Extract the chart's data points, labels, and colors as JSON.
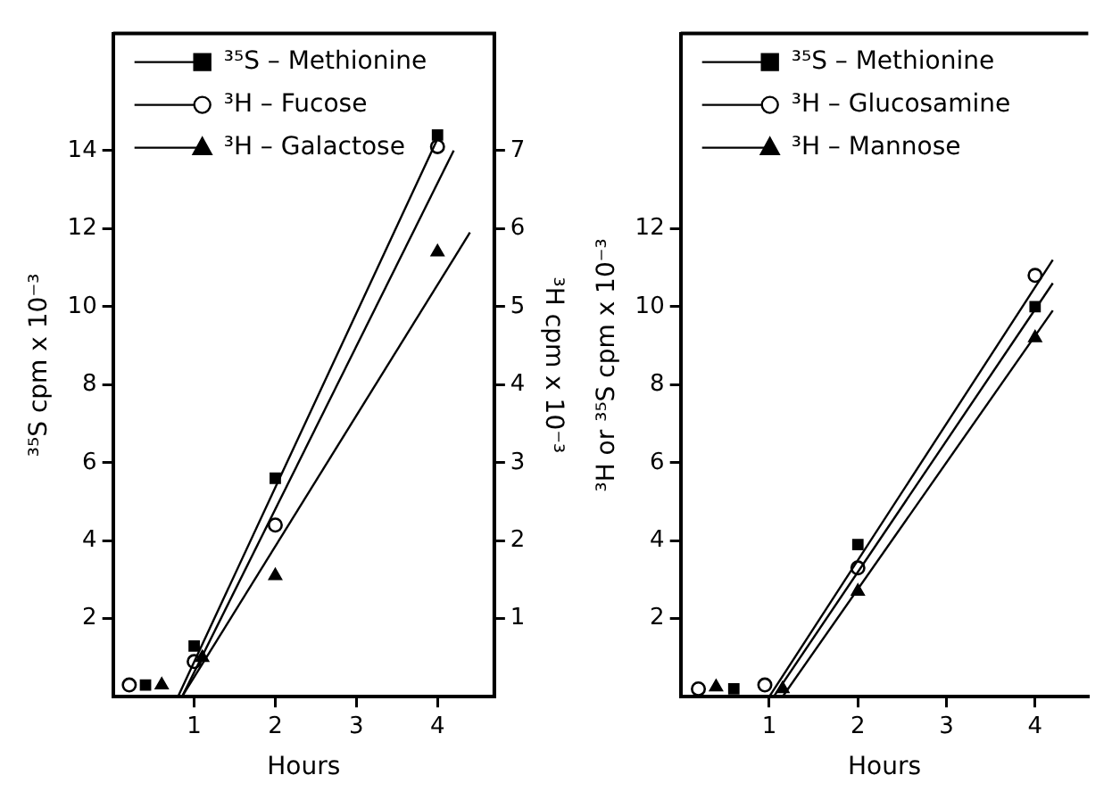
{
  "chart_data": [
    {
      "type": "scatter",
      "xlabel": "Hours",
      "ylabel": "³⁵S cpm x 10⁻³",
      "y2label": "³H cpm x 10⁻³",
      "xlim": [
        0,
        4.7
      ],
      "xticks": [
        1,
        2,
        3,
        4
      ],
      "ylim": [
        0,
        17
      ],
      "yticks": [
        2,
        4,
        6,
        8,
        10,
        12,
        14
      ],
      "y2lim": [
        0,
        8.5
      ],
      "y2ticks": [
        1,
        2,
        3,
        4,
        5,
        6,
        7
      ],
      "grid": false,
      "legend": "top left",
      "series": [
        {
          "name": "³⁵S – Methionine",
          "type": "scatter",
          "marker": "square",
          "color": "#000000",
          "x": [
            0.4,
            1,
            2,
            4
          ],
          "values": [
            0.3,
            1.3,
            5.6,
            14.4
          ]
        },
        {
          "name": "³H – Fucose",
          "type": "scatter",
          "marker": "circle",
          "color": "#000000",
          "axis": "y2",
          "x": [
            0.2,
            1,
            2,
            4
          ],
          "values": [
            0.15,
            0.45,
            2.2,
            7.05
          ]
        },
        {
          "name": "³H – Galactose",
          "type": "scatter",
          "marker": "triangle",
          "color": "#000000",
          "axis": "y2",
          "x": [
            0.6,
            1.1,
            2,
            4
          ],
          "values": [
            0.15,
            0.5,
            1.55,
            5.7
          ]
        },
        {
          "type": "line",
          "marker": "none",
          "color": "#000000",
          "x": [
            0.8,
            4
          ],
          "values": [
            0,
            14.3
          ]
        },
        {
          "type": "line",
          "marker": "none",
          "color": "#000000",
          "axis": "y2",
          "x": [
            0.85,
            4.2
          ],
          "values": [
            0,
            7.0
          ]
        },
        {
          "type": "line",
          "marker": "none",
          "color": "#000000",
          "axis": "y2",
          "x": [
            0.85,
            4.4
          ],
          "values": [
            0,
            5.95
          ]
        }
      ]
    },
    {
      "type": "scatter",
      "xlabel": "Hours",
      "ylabel": "³H or ³⁵S cpm x 10⁻³",
      "xlim": [
        0,
        4.6
      ],
      "xticks": [
        1,
        2,
        3,
        4
      ],
      "ylim": [
        0,
        17
      ],
      "yticks": [
        2,
        4,
        6,
        8,
        10,
        12
      ],
      "grid": false,
      "legend": "top left",
      "series": [
        {
          "name": "³⁵S – Methionine",
          "type": "scatter",
          "marker": "square",
          "color": "#000000",
          "x": [
            0.6,
            1.05,
            2,
            4
          ],
          "values": [
            0.2,
            null,
            3.9,
            10.0
          ]
        },
        {
          "name": "³H – Glucosamine",
          "type": "scatter",
          "marker": "circle",
          "color": "#000000",
          "x": [
            0.2,
            0.95,
            2,
            4
          ],
          "values": [
            0.2,
            0.3,
            3.3,
            10.8
          ]
        },
        {
          "name": "³H – Mannose",
          "type": "scatter",
          "marker": "triangle",
          "color": "#000000",
          "x": [
            0.4,
            1.15,
            2,
            4
          ],
          "values": [
            0.25,
            0.2,
            2.7,
            9.2
          ]
        },
        {
          "type": "line",
          "marker": "none",
          "color": "#000000",
          "x": [
            1.0,
            4.2
          ],
          "values": [
            0,
            11.2
          ]
        },
        {
          "type": "line",
          "marker": "none",
          "color": "#000000",
          "x": [
            1.05,
            4.2
          ],
          "values": [
            0,
            10.6
          ]
        },
        {
          "type": "line",
          "marker": "none",
          "color": "#000000",
          "x": [
            1.15,
            4.2
          ],
          "values": [
            0,
            9.9
          ]
        }
      ]
    }
  ]
}
